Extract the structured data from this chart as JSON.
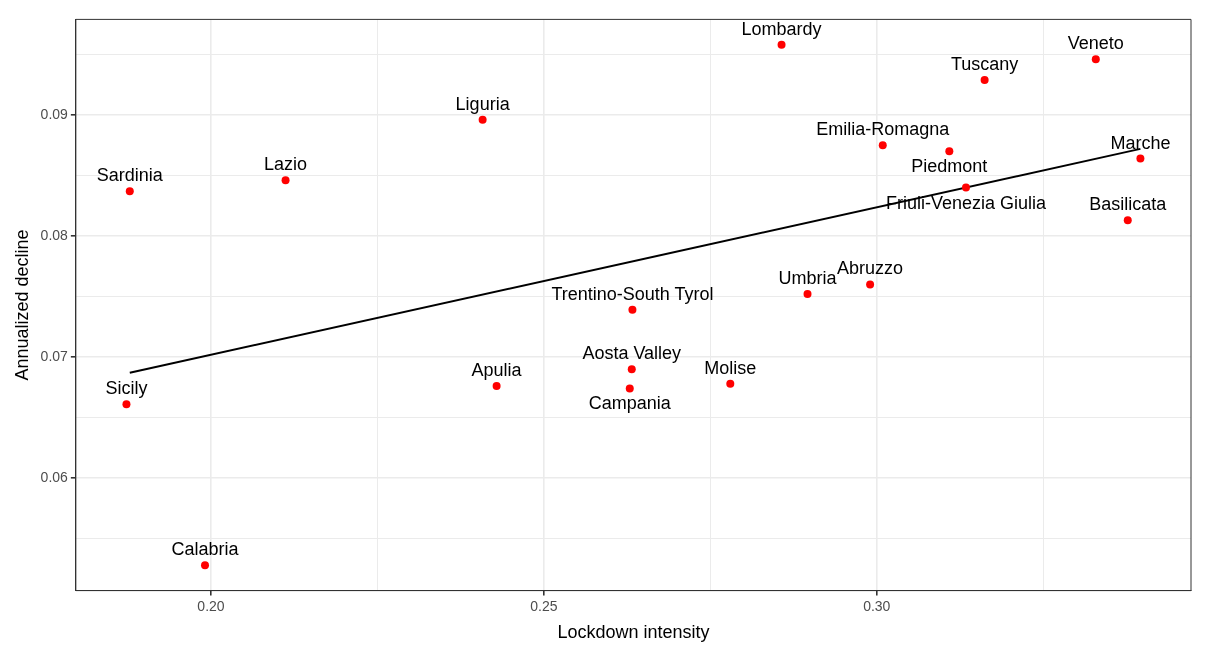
{
  "chart_data": {
    "type": "scatter",
    "xlabel": "Lockdown intensity",
    "ylabel": "Annualized decline",
    "xlim": [
      0.1797,
      0.3472
    ],
    "ylim": [
      0.0507,
      0.0979
    ],
    "xticks": [
      {
        "value": 0.2,
        "label": "0.20"
      },
      {
        "value": 0.225,
        "label": null
      },
      {
        "value": 0.25,
        "label": "0.25"
      },
      {
        "value": 0.275,
        "label": null
      },
      {
        "value": 0.3,
        "label": "0.30"
      },
      {
        "value": 0.325,
        "label": null
      }
    ],
    "yticks": [
      {
        "value": 0.055,
        "label": null
      },
      {
        "value": 0.06,
        "label": "0.06"
      },
      {
        "value": 0.065,
        "label": null
      },
      {
        "value": 0.07,
        "label": "0.07"
      },
      {
        "value": 0.075,
        "label": null
      },
      {
        "value": 0.08,
        "label": "0.08"
      },
      {
        "value": 0.085,
        "label": null
      },
      {
        "value": 0.09,
        "label": "0.09"
      },
      {
        "value": 0.095,
        "label": null
      }
    ],
    "grid": true,
    "legend": false,
    "marker": "circle",
    "series": [
      {
        "type": "scatter",
        "color": "#ff0000",
        "x": [
          0.2857,
          0.3329,
          0.3162,
          0.2408,
          0.3009,
          0.3109,
          0.3396,
          0.1878,
          0.2112,
          0.3134,
          0.3377,
          0.299,
          0.2896,
          0.2633,
          0.2632,
          0.2629,
          0.278,
          0.2429,
          0.1873,
          0.1991
        ],
        "values": [
          0.0958,
          0.0946,
          0.0929,
          0.0896,
          0.0875,
          0.087,
          0.0864,
          0.0837,
          0.0846,
          0.084,
          0.0813,
          0.076,
          0.0752,
          0.0739,
          0.069,
          0.0674,
          0.0678,
          0.0676,
          0.0661,
          0.0528
        ],
        "value_labels": [
          "Lombardy",
          "Veneto",
          "Tuscany",
          "Liguria",
          "Emilia-Romagna",
          "Piedmont",
          "Marche",
          "Sardinia",
          "Lazio",
          "Friuli-Venezia Giulia",
          "Basilicata",
          "Abruzzo",
          "Umbria",
          "Trentino-South Tyrol",
          "Aosta Valley",
          "Campania",
          "Molise",
          "Apulia",
          "Sicily",
          "Calabria"
        ]
      },
      {
        "type": "line",
        "color": "#000000",
        "x": [
          0.1878,
          0.3396
        ],
        "values": [
          0.0687,
          0.0872
        ],
        "marker": "none"
      }
    ]
  }
}
